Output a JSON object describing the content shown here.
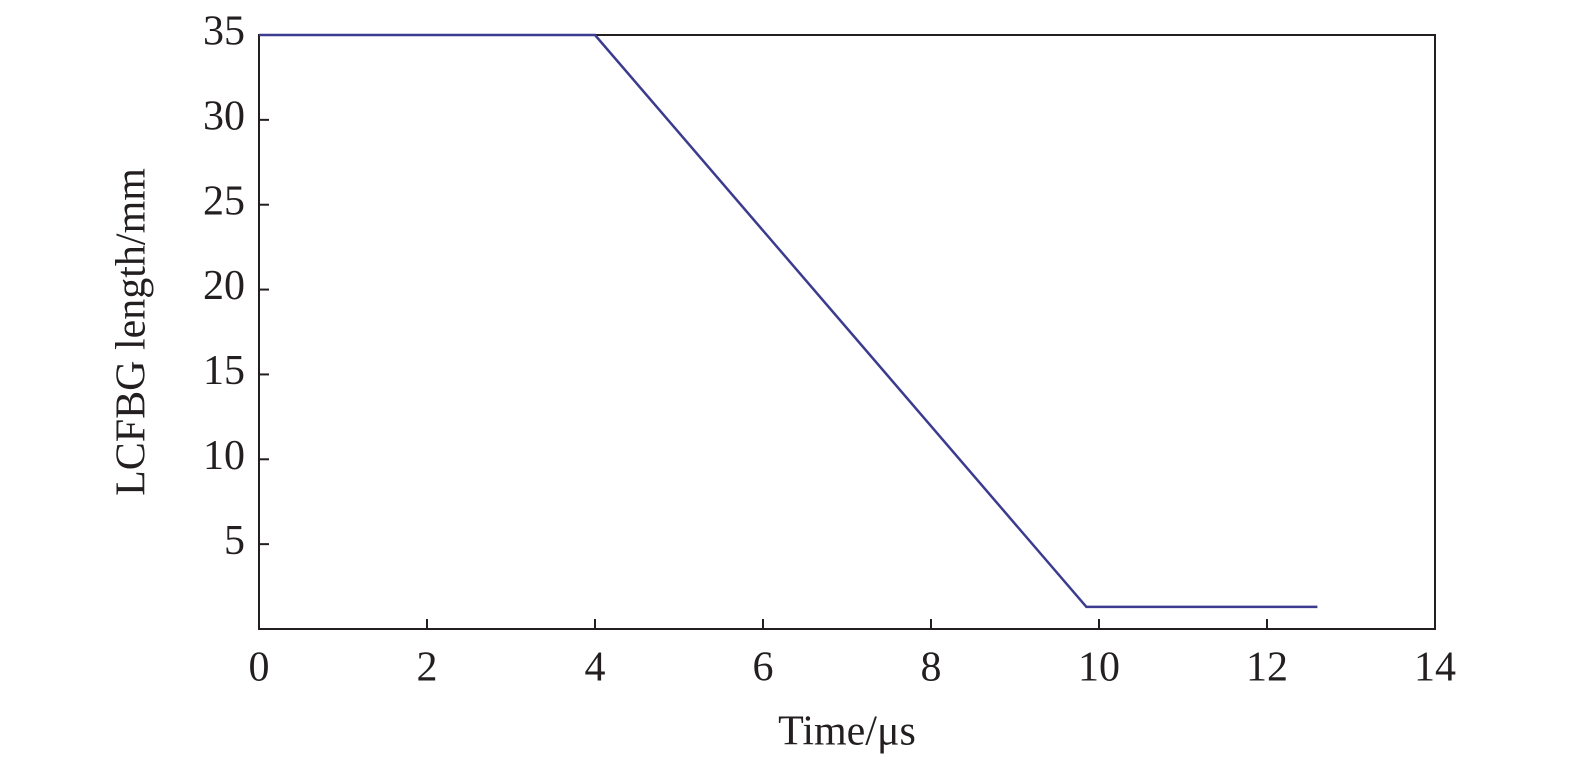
{
  "chart_data": {
    "type": "line",
    "xlabel": "Time/μs",
    "ylabel": "LCFBG length/mm",
    "x": [
      0,
      4,
      9.85,
      12.6
    ],
    "series": [
      {
        "color": "#3b3b8f",
        "values": [
          35,
          35,
          1.3,
          1.3
        ]
      }
    ],
    "xlim": [
      0,
      14
    ],
    "xticks": [
      0,
      2,
      4,
      6,
      8,
      10,
      12,
      14
    ],
    "ylim": [
      0,
      35
    ],
    "yticks": [
      5,
      10,
      15,
      20,
      25,
      30,
      35
    ]
  }
}
